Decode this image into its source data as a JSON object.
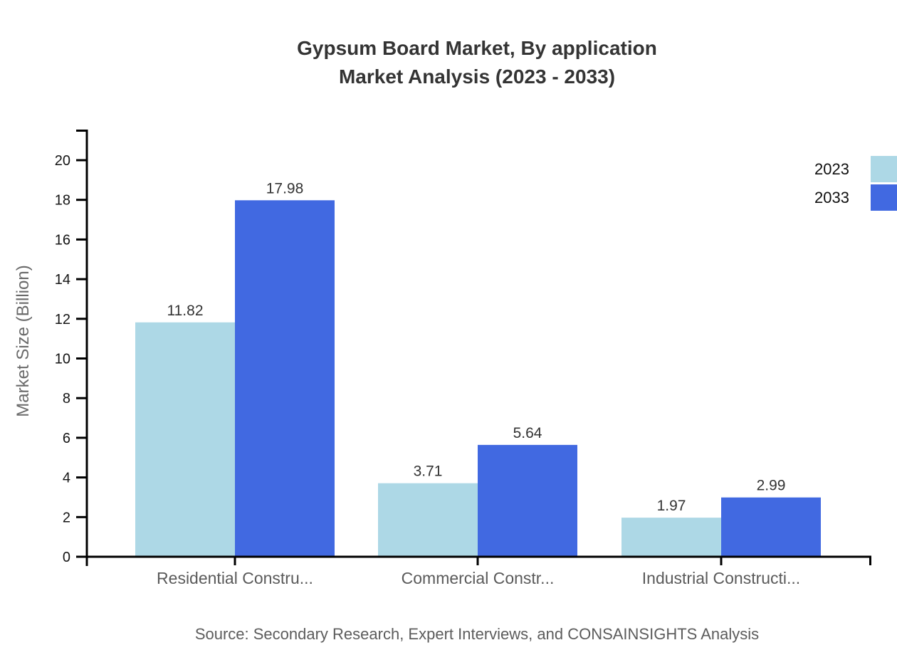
{
  "title": {
    "line1": "Gypsum Board Market, By application",
    "line2": "Market Analysis (2023 - 2033)"
  },
  "y_axis_label": "Market Size (Billion)",
  "source": "Source: Secondary Research, Expert Interviews, and CONSAINSIGHTS Analysis",
  "legend": {
    "items": [
      {
        "label": "2023",
        "color": "#ADD8E6"
      },
      {
        "label": "2033",
        "color": "#4169E1"
      }
    ],
    "position": "top-right"
  },
  "chart_data": {
    "type": "bar",
    "title": "Gypsum Board Market, By application Market Analysis (2023 - 2033)",
    "categories": [
      "Residential Constru...",
      "Commercial Constr...",
      "Industrial Constructi..."
    ],
    "series": [
      {
        "name": "2023",
        "color": "#ADD8E6",
        "values": [
          11.82,
          3.71,
          1.97
        ]
      },
      {
        "name": "2033",
        "color": "#4169E1",
        "values": [
          17.98,
          5.64,
          2.99
        ]
      }
    ],
    "value_labels": [
      "11.82",
      "17.98",
      "3.71",
      "5.64",
      "1.97",
      "2.99"
    ],
    "xlabel": "",
    "ylabel": "Market Size (Billion)",
    "ylim": [
      0,
      20
    ],
    "yticks": [
      0,
      2,
      4,
      6,
      8,
      10,
      12,
      14,
      16,
      18,
      20
    ],
    "grid": false,
    "legend_position": "top-right"
  }
}
